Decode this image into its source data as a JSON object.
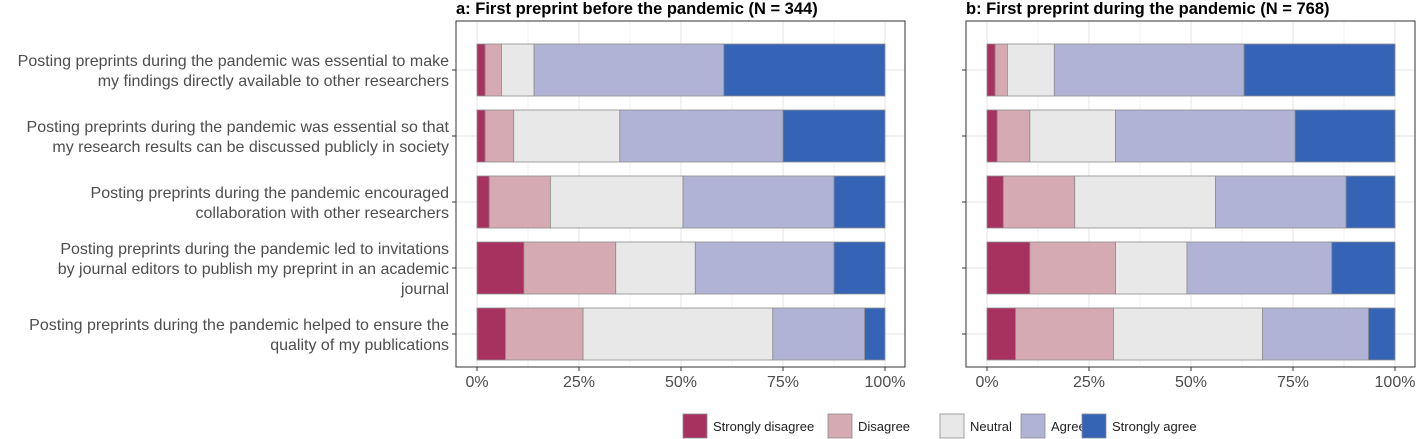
{
  "chart_data": {
    "type": "bar",
    "orientation": "horizontal",
    "stacked": true,
    "normalized": true,
    "categories": [
      [
        "Posting preprints during the pandemic was essential to make",
        "my findings directly available to other researchers"
      ],
      [
        "Posting preprints during the pandemic was essential so that",
        "my research results can be discussed publicly in society"
      ],
      [
        "Posting preprints during the pandemic encouraged",
        "collaboration with other researchers"
      ],
      [
        "Posting preprints during the pandemic led to invitations",
        "by journal editors to publish my preprint in an academic",
        "journal"
      ],
      [
        "Posting preprints during the pandemic helped to ensure the",
        "quality of my publications"
      ]
    ],
    "levels": [
      "Strongly disagree",
      "Disagree",
      "Neutral",
      "Agree",
      "Strongly agree"
    ],
    "colors": [
      "#a8325f",
      "#d5aab2",
      "#e8e8e8",
      "#b0b3d5",
      "#3564b7"
    ],
    "xlim": [
      0,
      100
    ],
    "xticks": [
      "0%",
      "25%",
      "50%",
      "75%",
      "100%"
    ],
    "grid": true,
    "legend_position": "bottom",
    "panels": [
      {
        "title": "a: First preprint before the pandemic (N = 344)",
        "values": [
          [
            2,
            4,
            8,
            46.5,
            39.5
          ],
          [
            2,
            7,
            26,
            40,
            25
          ],
          [
            3,
            15,
            32.5,
            37,
            12.5
          ],
          [
            11.5,
            22.5,
            19.5,
            34,
            12.5
          ],
          [
            7,
            19,
            46.5,
            22.5,
            5
          ]
        ]
      },
      {
        "title": "b: First preprint during the pandemic (N = 768)",
        "values": [
          [
            2,
            3,
            11.5,
            46.5,
            37
          ],
          [
            2.5,
            8,
            21,
            44,
            24.5
          ],
          [
            4,
            17.5,
            34.5,
            32,
            12
          ],
          [
            10.5,
            21,
            17.5,
            35.5,
            15.5
          ],
          [
            7,
            24,
            36.5,
            26,
            6.5
          ]
        ]
      }
    ]
  }
}
